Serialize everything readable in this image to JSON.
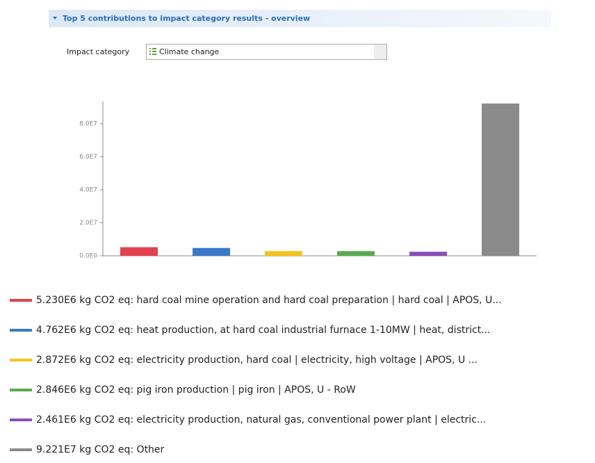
{
  "header": {
    "title": "Top 5 contributions to impact category results - overview"
  },
  "form": {
    "label": "Impact category",
    "value": "Climate change"
  },
  "chart_data": {
    "type": "bar",
    "categories": [
      "5.230E6 kg CO2 eq: hard coal mine operation and hard coal preparation | hard coal | APOS, U...",
      "4.762E6 kg CO2 eq: heat production, at hard coal industrial furnace 1-10MW | heat, district...",
      "2.872E6 kg CO2 eq: electricity production, hard coal | electricity, high voltage | APOS, U ...",
      "2.846E6 kg CO2 eq: pig iron production | pig iron | APOS, U - RoW",
      "2.461E6 kg CO2 eq: electricity production, natural gas, conventional power plant | electric...",
      "9.221E7 kg CO2 eq: Other"
    ],
    "values": [
      5230000,
      4762000,
      2872000,
      2846000,
      2461000,
      92210000
    ],
    "colors": [
      "#e2434f",
      "#3a78c8",
      "#f6c31c",
      "#58ab4f",
      "#8b4db6",
      "#8a8a8a"
    ],
    "ylim": [
      0,
      93000000
    ],
    "yticks": [
      {
        "value": 0,
        "label": "0.0E0"
      },
      {
        "value": 20000000,
        "label": "2.0E7"
      },
      {
        "value": 40000000,
        "label": "4.0E7"
      },
      {
        "value": 60000000,
        "label": "6.0E7"
      },
      {
        "value": 80000000,
        "label": "8.0E7"
      }
    ]
  }
}
